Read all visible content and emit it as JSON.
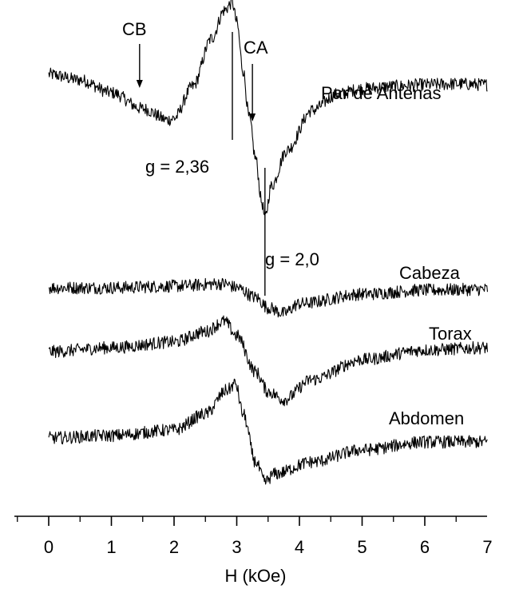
{
  "chart_data": {
    "type": "line",
    "xlabel": "H (kOe)",
    "ylabel": "",
    "xlim": [
      0,
      7
    ],
    "x_ticks": [
      "0",
      "1",
      "2",
      "3",
      "4",
      "5",
      "6",
      "7"
    ],
    "grid": false,
    "series": [
      {
        "name": "Par de Antenas",
        "x": [
          0.0,
          0.5,
          1.0,
          1.5,
          1.9,
          2.0,
          2.3,
          2.6,
          2.8,
          2.93,
          3.0,
          3.1,
          3.2,
          3.3,
          3.4,
          3.45,
          3.55,
          3.8,
          4.2,
          4.6,
          5.0,
          5.5,
          6.0,
          6.5,
          7.0
        ],
        "y": [
          0.55,
          0.48,
          0.32,
          0.12,
          -0.02,
          0.0,
          0.4,
          1.0,
          1.35,
          1.45,
          1.2,
          0.6,
          0.0,
          -0.5,
          -1.05,
          -1.25,
          -0.85,
          -0.4,
          0.1,
          0.3,
          0.37,
          0.4,
          0.42,
          0.43,
          0.42
        ]
      },
      {
        "name": "Cabeza",
        "x": [
          0.0,
          1.0,
          2.0,
          2.8,
          3.0,
          3.3,
          3.5,
          3.75,
          4.0,
          5.0,
          6.0,
          7.0
        ],
        "y": [
          0.0,
          0.0,
          0.02,
          0.05,
          0.0,
          -0.12,
          -0.25,
          -0.32,
          -0.2,
          -0.08,
          -0.03,
          -0.02
        ]
      },
      {
        "name": "Torax",
        "x": [
          0.0,
          1.0,
          2.0,
          2.5,
          2.8,
          3.0,
          3.3,
          3.5,
          3.75,
          4.2,
          5.0,
          6.0,
          7.0
        ],
        "y": [
          0.0,
          0.05,
          0.12,
          0.25,
          0.38,
          0.2,
          -0.25,
          -0.5,
          -0.6,
          -0.35,
          -0.1,
          0.02,
          0.05
        ]
      },
      {
        "name": "Abdomen",
        "x": [
          0.0,
          1.0,
          2.0,
          2.5,
          2.85,
          2.98,
          3.1,
          3.3,
          3.45,
          3.6,
          4.2,
          5.0,
          6.0,
          7.0
        ],
        "y": [
          0.0,
          0.03,
          0.1,
          0.3,
          0.6,
          0.68,
          0.3,
          -0.3,
          -0.55,
          -0.45,
          -0.3,
          -0.15,
          -0.05,
          -0.05
        ]
      }
    ],
    "annotations": [
      {
        "text": "CB",
        "x": 1.45,
        "kind": "arrow"
      },
      {
        "text": "CA",
        "x": 3.25,
        "kind": "arrow"
      },
      {
        "text": "g = 2,36",
        "x": 2.93,
        "kind": "resonance-line"
      },
      {
        "text": "g = 2,0",
        "x": 3.45,
        "kind": "resonance-line"
      }
    ]
  }
}
